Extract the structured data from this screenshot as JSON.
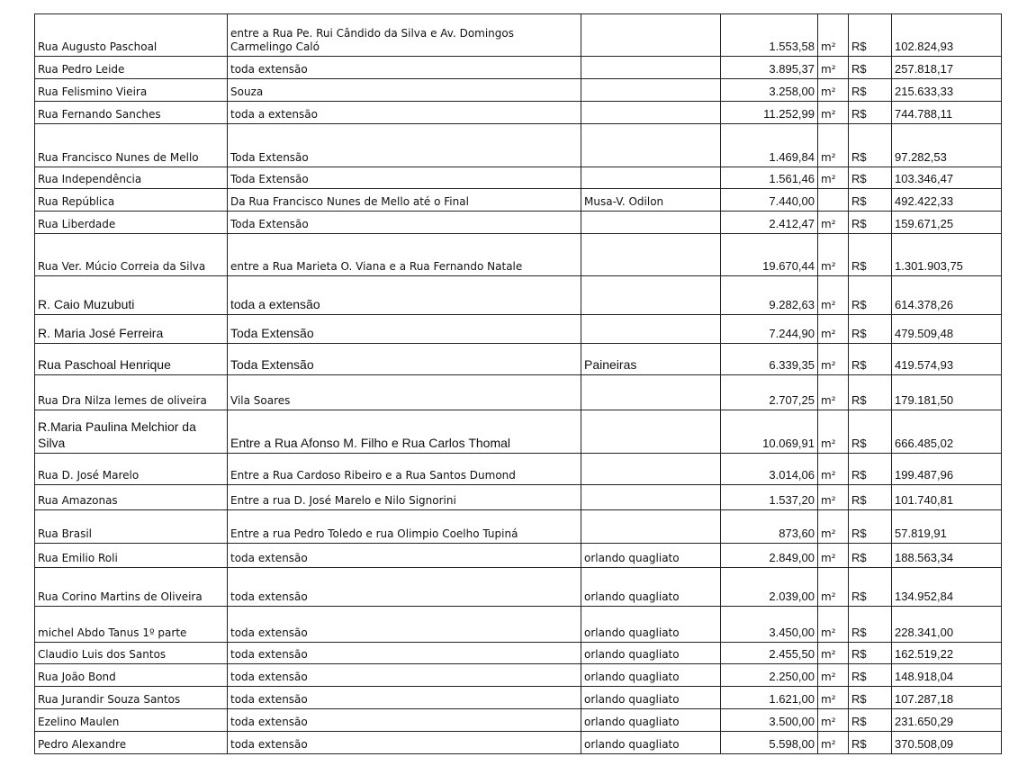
{
  "table": {
    "rows": [
      [
        "Rua Augusto Paschoal",
        "entre a Rua Pe. Rui Cândido da Silva e Av. Domingos Carmelingo Caló",
        null,
        "1.553,58",
        "m²",
        "R$",
        "102.824,93"
      ],
      [
        "Rua Pedro Leide",
        "toda extensão",
        null,
        "3.895,37",
        "m²",
        "R$",
        "257.818,17"
      ],
      [
        "Rua Felismino Vieira",
        "Souza",
        null,
        "3.258,00",
        "m²",
        "R$",
        "215.633,33"
      ],
      [
        "Rua Fernando Sanches",
        "toda a extensão",
        null,
        "11.252,99",
        "m²",
        "R$",
        "744.788,11"
      ],
      [
        "Rua Francisco Nunes de Mello",
        "Toda Extensão",
        null,
        "1.469,84",
        "m²",
        "R$",
        "97.282,53"
      ],
      [
        "Rua Independência",
        "Toda Extensão",
        null,
        "1.561,46",
        "m²",
        "R$",
        "103.346,47"
      ],
      [
        "Rua República",
        "Da Rua Francisco Nunes de Mello até o Final",
        "Musa-V. Odilon",
        "7.440,00",
        null,
        "R$",
        "492.422,33"
      ],
      [
        "Rua Liberdade",
        "Toda Extensão",
        null,
        "2.412,47",
        "m²",
        "R$",
        "159.671,25"
      ],
      [
        "Rua Ver. Múcio Correia da Silva",
        "entre a Rua Marieta O. Viana e a Rua Fernando Natale",
        null,
        "19.670,44",
        "m²",
        "R$",
        "1.301.903,75"
      ],
      [
        "R. Caio Muzubuti",
        "toda a extensão",
        null,
        "9.282,63",
        "m²",
        "R$",
        "614.378,26"
      ],
      [
        "R. Maria José Ferreira",
        "Toda Extensão",
        null,
        "7.244,90",
        "m²",
        "R$",
        "479.509,48"
      ],
      [
        "Rua Paschoal Henrique",
        "Toda Extensão",
        "Paineiras",
        "6.339,35",
        "m²",
        "R$",
        "419.574,93"
      ],
      [
        "Rua Dra Nilza lemes de oliveira",
        "Vila Soares",
        null,
        "2.707,25",
        "m²",
        "R$",
        "179.181,50"
      ],
      [
        "R.Maria Paulina Melchior da Silva",
        "Entre a Rua Afonso M. Filho e Rua Carlos Thomal",
        null,
        "10.069,91",
        "m²",
        "R$",
        "666.485,02"
      ],
      [
        "Rua D. José Marelo",
        "Entre a Rua Cardoso Ribeiro e a Rua Santos Dumond",
        null,
        "3.014,06",
        "m²",
        "R$",
        "199.487,96"
      ],
      [
        "Rua Amazonas",
        "Entre a rua D. José Marelo e Nilo Signorini",
        null,
        "1.537,20",
        "m²",
        "R$",
        "101.740,81"
      ],
      [
        "Rua Brasil",
        "Entre a rua Pedro Toledo e rua Olimpio Coelho Tupiná",
        null,
        "873,60",
        "m²",
        "R$",
        "57.819,91"
      ],
      [
        "Rua Emilio Roli",
        "toda extensão",
        "orlando quagliato",
        "2.849,00",
        "m²",
        "R$",
        "188.563,34"
      ],
      [
        "Rua Corino Martins de Oliveira",
        "toda extensão",
        "orlando quagliato",
        "2.039,00",
        "m²",
        "R$",
        "134.952,84"
      ],
      [
        "michel Abdo Tanus 1º parte",
        "toda extensão",
        "orlando quagliato",
        "3.450,00",
        "m²",
        "R$",
        "228.341,00"
      ],
      [
        "Claudio Luis dos Santos",
        "toda extensão",
        "orlando quagliato",
        "2.455,50",
        "m²",
        "R$",
        "162.519,22"
      ],
      [
        "Rua João Bond",
        "toda extensão",
        "orlando quagliato",
        "2.250,00",
        "m²",
        "R$",
        "148.918,04"
      ],
      [
        "Rua Jurandir Souza Santos",
        "toda extensão",
        "orlando quagliato",
        "1.621,00",
        "m²",
        "R$",
        "107.287,18"
      ],
      [
        "Ezelino Maulen",
        "toda extensão",
        "orlando quagliato",
        "3.500,00",
        "m²",
        "R$",
        "231.650,29"
      ],
      [
        "Pedro Alexandre",
        "toda extensão",
        "orlando quagliato",
        "5.598,00",
        "m²",
        "R$",
        "370.508,09"
      ]
    ]
  }
}
